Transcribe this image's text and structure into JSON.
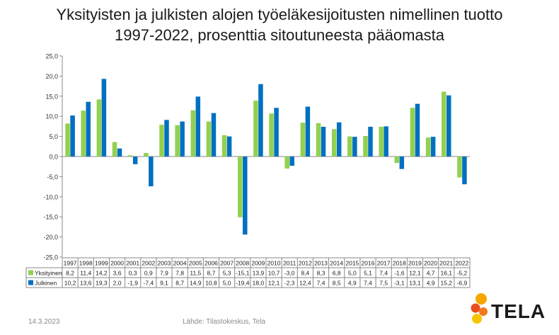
{
  "title_lines": [
    "Yksityisten ja julkisten alojen työeläkesijoitusten nimellinen tuotto",
    "1997-2022, prosenttia sitoutuneesta pääomasta"
  ],
  "footer": {
    "date": "14.3.2023",
    "source": "Lähde: Tilastokeskus, Tela"
  },
  "logo": {
    "text": "TELA"
  },
  "chart_data": {
    "type": "bar",
    "title": "Yksityisten ja julkisten alojen työeläkesijoitusten nimellinen tuotto 1997-2022, prosenttia sitoutuneesta pääomasta",
    "xlabel": "",
    "ylabel": "",
    "ylim": [
      -25,
      25
    ],
    "ytick_step": 5,
    "ytick_labels": [
      "25,0",
      "20,0",
      "15,0",
      "10,0",
      "5,0",
      "0,0",
      "-5,0",
      "-10,0",
      "-15,0",
      "-20,0",
      "-25,0"
    ],
    "grid": false,
    "legend": "data-table-rows",
    "categories": [
      "1997",
      "1998",
      "1999",
      "2000",
      "2001",
      "2002",
      "2003",
      "2004",
      "2005",
      "2006",
      "2007",
      "2008",
      "2009",
      "2010",
      "2011",
      "2012",
      "2013",
      "2014",
      "2015",
      "2016",
      "2017",
      "2018",
      "2019",
      "2020",
      "2021",
      "2022"
    ],
    "series": [
      {
        "name": "Yksityinen",
        "color": "#92d050",
        "values": [
          8.2,
          11.4,
          14.2,
          3.6,
          0.3,
          0.9,
          7.9,
          7.8,
          11.5,
          8.7,
          5.3,
          -15.1,
          13.9,
          10.7,
          -3.0,
          8.4,
          8.3,
          6.8,
          5.0,
          5.1,
          7.4,
          -1.6,
          12.1,
          4.7,
          16.1,
          -5.2
        ],
        "labels": [
          "8,2",
          "11,4",
          "14,2",
          "3,6",
          "0,3",
          "0,9",
          "7,9",
          "7,8",
          "11,5",
          "8,7",
          "5,3",
          "-15,1",
          "13,9",
          "10,7",
          "-3,0",
          "8,4",
          "8,3",
          "6,8",
          "5,0",
          "5,1",
          "7,4",
          "-1,6",
          "12,1",
          "4,7",
          "16,1",
          "-5,2"
        ]
      },
      {
        "name": "Julkinen",
        "color": "#0070c0",
        "values": [
          10.2,
          13.6,
          19.3,
          2.0,
          -1.9,
          -7.4,
          9.1,
          8.7,
          14.9,
          10.8,
          5.0,
          -19.4,
          18.0,
          12.1,
          -2.3,
          12.4,
          7.4,
          8.5,
          4.9,
          7.4,
          7.5,
          -3.1,
          13.1,
          4.9,
          15.2,
          -6.9
        ],
        "labels": [
          "10,2",
          "13,6",
          "19,3",
          "2,0",
          "-1,9",
          "-7,4",
          "9,1",
          "8,7",
          "14,9",
          "10,8",
          "5,0",
          "-19,4",
          "18,0",
          "12,1",
          "-2,3",
          "12,4",
          "7,4",
          "8,5",
          "4,9",
          "7,4",
          "7,5",
          "-3,1",
          "13,1",
          "4,9",
          "15,2",
          "-6,9"
        ]
      }
    ]
  }
}
